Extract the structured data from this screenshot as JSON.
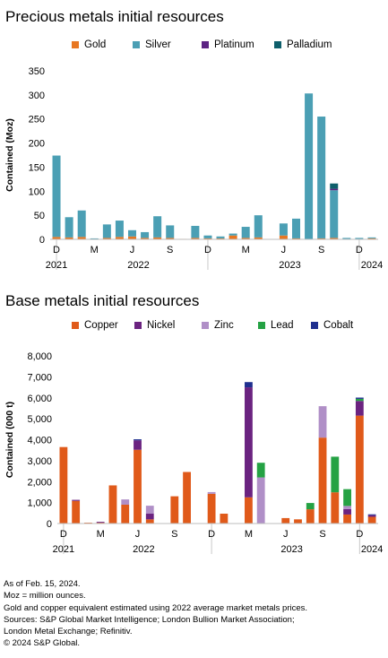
{
  "charts": [
    {
      "type": "bar",
      "stacked": true,
      "title": "Precious metals initial resources",
      "ylabel": "Contained (Moz)",
      "ylim": [
        0,
        350
      ],
      "yticks": [
        0,
        50,
        100,
        150,
        200,
        250,
        300,
        350
      ],
      "ytick_labels": [
        "0",
        "50",
        "100",
        "150",
        "200",
        "250",
        "300",
        "350"
      ],
      "grid": false,
      "legend_position": "top",
      "month_labels": [
        "D",
        "",
        "",
        "M",
        "",
        "",
        "J",
        "",
        "",
        "S",
        "",
        "",
        "D",
        "",
        "",
        "M",
        "",
        "",
        "J",
        "",
        "",
        "S",
        "",
        "",
        "D",
        ""
      ],
      "year_labels": [
        {
          "text": "2021",
          "index": 0
        },
        {
          "text": "2022",
          "index": 6.5
        },
        {
          "text": "2023",
          "index": 18.5
        },
        {
          "text": "2024",
          "index": 25
        }
      ],
      "year_separators": [
        0.5,
        12.5,
        24.5
      ],
      "series": [
        {
          "name": "Gold",
          "color": "#e87722",
          "values": [
            5,
            4,
            5,
            1,
            3,
            5,
            6,
            3,
            4,
            3,
            1,
            3,
            2,
            2,
            8,
            3,
            4,
            0,
            8,
            2,
            1,
            2,
            3,
            1,
            1,
            2
          ]
        },
        {
          "name": "Silver",
          "color": "#4b9fb4",
          "values": [
            169,
            42,
            55,
            1,
            28,
            34,
            13,
            12,
            44,
            26,
            0,
            25,
            6,
            4,
            4,
            23,
            46,
            0,
            25,
            41,
            302,
            253,
            99,
            2,
            2,
            2
          ]
        },
        {
          "name": "Platinum",
          "color": "#5c2483",
          "values": [
            0,
            0,
            0,
            0,
            0,
            0,
            0,
            0,
            0,
            0,
            0,
            0,
            0,
            0,
            0,
            0,
            0,
            0,
            0,
            0,
            0,
            0,
            3,
            0,
            0,
            0
          ]
        },
        {
          "name": "Palladium",
          "color": "#0e5f6b",
          "values": [
            0,
            0,
            0,
            0,
            0,
            0,
            0,
            0,
            0,
            0,
            0,
            0,
            0,
            0,
            0,
            0,
            0,
            0,
            0,
            0,
            0,
            0,
            11,
            0,
            0,
            0
          ]
        }
      ]
    },
    {
      "type": "bar",
      "stacked": true,
      "title": "Base metals initial resources",
      "ylabel": "Contained (000 t)",
      "ylim": [
        0,
        8000
      ],
      "yticks": [
        0,
        1000,
        2000,
        3000,
        4000,
        5000,
        6000,
        7000,
        8000
      ],
      "ytick_labels": [
        "0",
        "1,000",
        "2,000",
        "3,000",
        "4,000",
        "5,000",
        "6,000",
        "7,000",
        "8,000"
      ],
      "grid": false,
      "legend_position": "top",
      "month_labels": [
        "D",
        "",
        "",
        "M",
        "",
        "",
        "J",
        "",
        "",
        "S",
        "",
        "",
        "D",
        "",
        "",
        "M",
        "",
        "",
        "J",
        "",
        "",
        "S",
        "",
        "",
        "D",
        ""
      ],
      "year_labels": [
        {
          "text": "2021",
          "index": 0
        },
        {
          "text": "2022",
          "index": 6.5
        },
        {
          "text": "2023",
          "index": 18.5
        },
        {
          "text": "2024",
          "index": 25
        }
      ],
      "year_separators": [
        0.5,
        12.5,
        24.5
      ],
      "series": [
        {
          "name": "Copper",
          "color": "#e05a1a",
          "values": [
            3650,
            1080,
            40,
            40,
            1820,
            900,
            3520,
            200,
            0,
            1300,
            2460,
            0,
            1420,
            470,
            0,
            1250,
            0,
            0,
            260,
            200,
            680,
            4100,
            1490,
            430,
            5150,
            320
          ]
        },
        {
          "name": "Nickel",
          "color": "#6b2380",
          "values": [
            0,
            50,
            0,
            40,
            0,
            0,
            450,
            270,
            0,
            0,
            0,
            0,
            0,
            0,
            0,
            5250,
            0,
            0,
            0,
            0,
            0,
            0,
            0,
            260,
            700,
            80
          ]
        },
        {
          "name": "Zinc",
          "color": "#b08fc7",
          "values": [
            0,
            0,
            0,
            0,
            0,
            250,
            0,
            380,
            0,
            0,
            0,
            0,
            80,
            0,
            0,
            0,
            2200,
            0,
            0,
            0,
            0,
            1500,
            0,
            150,
            0,
            0
          ]
        },
        {
          "name": "Lead",
          "color": "#25a244",
          "values": [
            0,
            0,
            0,
            0,
            0,
            0,
            0,
            0,
            0,
            0,
            0,
            0,
            0,
            0,
            0,
            0,
            700,
            0,
            0,
            0,
            300,
            0,
            1700,
            800,
            100,
            0
          ]
        },
        {
          "name": "Cobalt",
          "color": "#1f2f8f",
          "values": [
            0,
            0,
            0,
            0,
            0,
            0,
            50,
            0,
            0,
            0,
            0,
            0,
            0,
            0,
            0,
            250,
            0,
            0,
            0,
            0,
            0,
            0,
            0,
            0,
            60,
            40
          ]
        }
      ]
    }
  ],
  "footnotes": [
    "As of Feb. 15, 2024.",
    "Moz = million ounces.",
    "Gold and copper equivalent estimated using 2022 average market metals prices.",
    "Sources: S&P Global Market Intelligence; London Bullion Market Association;",
    "London Metal Exchange; Refinitiv.",
    "© 2024 S&P Global."
  ]
}
